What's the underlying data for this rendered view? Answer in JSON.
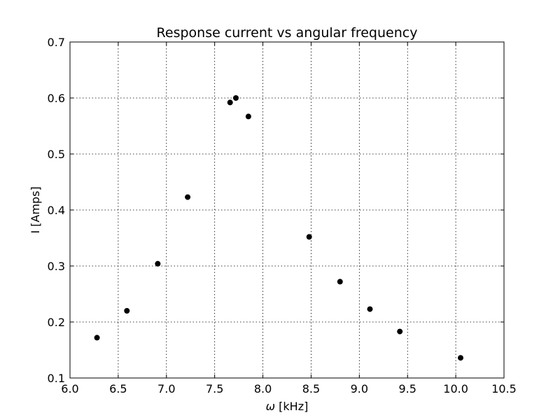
{
  "chart_data": {
    "type": "scatter",
    "title": "Response current vs angular frequency",
    "xlabel_symbol": "ω",
    "xlabel_unit": " [kHz]",
    "ylabel": "I [Amps]",
    "xlim": [
      6.0,
      10.5
    ],
    "ylim": [
      0.1,
      0.7
    ],
    "xticks": [
      "6.0",
      "6.5",
      "7.0",
      "7.5",
      "8.0",
      "8.5",
      "9.0",
      "9.5",
      "10.0",
      "10.5"
    ],
    "yticks": [
      "0.1",
      "0.2",
      "0.3",
      "0.4",
      "0.5",
      "0.6",
      "0.7"
    ],
    "grid": true,
    "marker_color": "#000000",
    "x": [
      6.28,
      6.59,
      6.91,
      7.22,
      7.66,
      7.72,
      7.85,
      8.48,
      8.8,
      9.11,
      9.42,
      10.05
    ],
    "y": [
      0.172,
      0.22,
      0.304,
      0.423,
      0.592,
      0.6,
      0.567,
      0.352,
      0.272,
      0.223,
      0.183,
      0.136
    ]
  }
}
